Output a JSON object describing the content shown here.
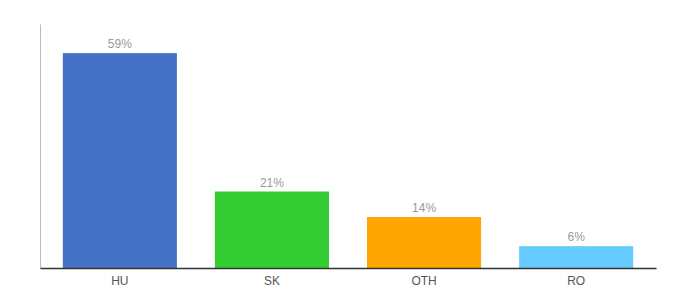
{
  "chart_data": {
    "type": "bar",
    "categories": [
      "HU",
      "SK",
      "OTH",
      "RO"
    ],
    "values": [
      59,
      21,
      14,
      6
    ],
    "value_labels": [
      "59%",
      "21%",
      "14%",
      "6%"
    ],
    "colors": [
      "#4472C4",
      "#33CC33",
      "#FFA500",
      "#66CCFF"
    ],
    "data_labels": true,
    "ylim": [
      0,
      67
    ],
    "tick_labels": "x",
    "grid": false
  }
}
